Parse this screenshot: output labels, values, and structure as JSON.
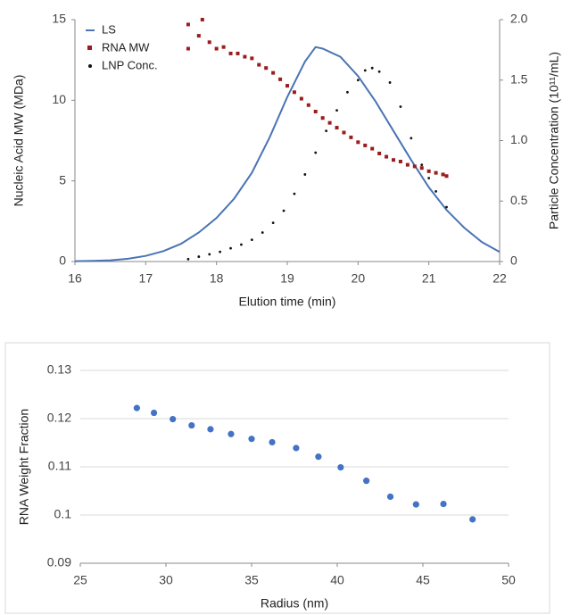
{
  "chart_data": [
    {
      "type": "line",
      "xlabel": "Elution time (min)",
      "ylabel": "Nucleic Acid MW (MDa)",
      "y2label": "Particle Concentration (10¹¹/mL)",
      "xlim": [
        16,
        22
      ],
      "xticks": [
        16,
        17,
        18,
        19,
        20,
        21,
        22
      ],
      "ylim": [
        0,
        15
      ],
      "yticks": [
        0,
        5,
        10,
        15
      ],
      "y2lim": [
        0,
        2
      ],
      "y2ticks": [
        0,
        0.5,
        {
          "value": 1,
          "label": "1.0"
        },
        1.5,
        {
          "value": 2,
          "label": "2.0"
        }
      ],
      "grid": false,
      "legend": "top-left",
      "series": [
        {
          "name": "LS",
          "color": "#4a74b4",
          "mark": "line",
          "x": [
            16,
            16.25,
            16.5,
            16.75,
            17,
            17.25,
            17.5,
            17.75,
            18,
            18.25,
            18.5,
            18.75,
            19,
            19.25,
            19.4,
            19.5,
            19.75,
            20,
            20.25,
            20.5,
            20.75,
            21,
            21.25,
            21.5,
            21.75,
            22
          ],
          "values": [
            0.02,
            0.04,
            0.08,
            0.17,
            0.35,
            0.65,
            1.1,
            1.8,
            2.7,
            3.9,
            5.5,
            7.7,
            10.2,
            12.4,
            13.3,
            13.2,
            12.7,
            11.5,
            9.9,
            8.1,
            6.3,
            4.6,
            3.2,
            2.1,
            1.2,
            0.6
          ]
        },
        {
          "name": "RNA MW",
          "color": "#9b1c1c",
          "mark": "square",
          "x": [
            17.6,
            17.6,
            17.75,
            17.8,
            17.9,
            18.0,
            18.1,
            18.2,
            18.3,
            18.4,
            18.5,
            18.6,
            18.7,
            18.8,
            18.9,
            19.0,
            19.1,
            19.2,
            19.3,
            19.4,
            19.5,
            19.6,
            19.7,
            19.8,
            19.9,
            20.0,
            20.1,
            20.2,
            20.3,
            20.4,
            20.5,
            20.6,
            20.7,
            20.8,
            20.9,
            21.0,
            21.1,
            21.2,
            21.25
          ],
          "values": [
            14.7,
            13.2,
            14.0,
            15.0,
            13.6,
            13.2,
            13.3,
            12.9,
            12.9,
            12.7,
            12.6,
            12.2,
            12.0,
            11.7,
            11.3,
            10.9,
            10.5,
            10.1,
            9.7,
            9.3,
            8.9,
            8.6,
            8.3,
            8.0,
            7.7,
            7.4,
            7.2,
            7.0,
            6.7,
            6.5,
            6.3,
            6.2,
            6.0,
            5.9,
            5.8,
            5.6,
            5.5,
            5.4,
            5.3
          ]
        },
        {
          "name": "LNP Conc.",
          "color": "#111111",
          "mark": "dot",
          "axis": "y2",
          "x": [
            17.6,
            17.75,
            17.9,
            18.05,
            18.2,
            18.35,
            18.5,
            18.65,
            18.8,
            18.95,
            19.1,
            19.25,
            19.4,
            19.55,
            19.7,
            19.85,
            20.0,
            20.1,
            20.2,
            20.3,
            20.45,
            20.6,
            20.75,
            20.9,
            21.0,
            21.1,
            21.25
          ],
          "values": [
            0.02,
            0.04,
            0.06,
            0.08,
            0.11,
            0.14,
            0.18,
            0.24,
            0.32,
            0.42,
            0.56,
            0.72,
            0.9,
            1.08,
            1.25,
            1.4,
            1.5,
            1.58,
            1.6,
            1.57,
            1.48,
            1.28,
            1.02,
            0.8,
            0.69,
            0.58,
            0.45
          ]
        }
      ]
    },
    {
      "type": "scatter",
      "xlabel": "Radius (nm)",
      "ylabel": "RNA Weight Fraction",
      "xlim": [
        25,
        50
      ],
      "xticks": [
        25,
        30,
        35,
        40,
        45,
        50
      ],
      "ylim": [
        0.09,
        0.13
      ],
      "yticks": [
        0.09,
        0.1,
        0.11,
        0.12,
        0.13
      ],
      "grid": true,
      "color": "#4472c4",
      "x": [
        28.3,
        29.3,
        30.4,
        31.5,
        32.6,
        33.8,
        35.0,
        36.2,
        37.6,
        38.9,
        40.2,
        41.7,
        43.1,
        44.6,
        46.2,
        47.9
      ],
      "values": [
        0.1222,
        0.1212,
        0.1199,
        0.1186,
        0.1178,
        0.1168,
        0.1158,
        0.1151,
        0.1139,
        0.1121,
        0.1099,
        0.1071,
        0.1038,
        0.1022,
        0.1023,
        0.0991
      ]
    }
  ]
}
